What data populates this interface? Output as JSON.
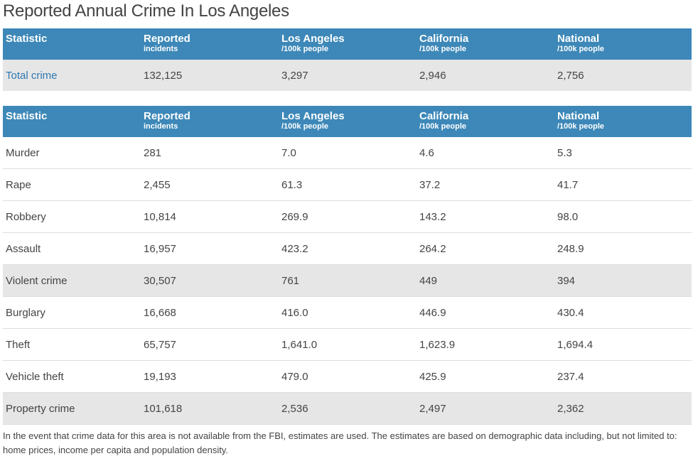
{
  "title": "Reported Annual Crime In Los Angeles",
  "header": {
    "c1": "Statistic",
    "c2": "Reported",
    "c2_sub": "incidents",
    "c3": "Los Angeles",
    "c3_sub": "/100k people",
    "c4": "California",
    "c4_sub": "/100k people",
    "c5": "National",
    "c5_sub": "/100k people"
  },
  "summary": {
    "stat": "Total crime",
    "reported": "132,125",
    "la": "3,297",
    "ca": "2,946",
    "national": "2,756"
  },
  "rows": [
    {
      "stat": "Murder",
      "reported": "281",
      "la": "7.0",
      "ca": "4.6",
      "national": "5.3"
    },
    {
      "stat": "Rape",
      "reported": "2,455",
      "la": "61.3",
      "ca": "37.2",
      "national": "41.7"
    },
    {
      "stat": "Robbery",
      "reported": "10,814",
      "la": "269.9",
      "ca": "143.2",
      "national": "98.0"
    },
    {
      "stat": "Assault",
      "reported": "16,957",
      "la": "423.2",
      "ca": "264.2",
      "national": "248.9"
    },
    {
      "stat": "Violent crime",
      "reported": "30,507",
      "la": "761",
      "ca": "449",
      "national": "394"
    },
    {
      "stat": "Burglary",
      "reported": "16,668",
      "la": "416.0",
      "ca": "446.9",
      "national": "430.4"
    },
    {
      "stat": "Theft",
      "reported": "65,757",
      "la": "1,641.0",
      "ca": "1,623.9",
      "national": "1,694.4"
    },
    {
      "stat": "Vehicle theft",
      "reported": "19,193",
      "la": "479.0",
      "ca": "425.9",
      "national": "237.4"
    },
    {
      "stat": "Property crime",
      "reported": "101,618",
      "la": "2,536",
      "ca": "2,497",
      "national": "2,362"
    }
  ],
  "footnote": "In the event that crime data for this area is not available from the FBI, estimates are used. The estimates are based on demographic data including, but not limited to: home prices, income per capita and population density.",
  "colors": {
    "header_bg": "#3d88b8",
    "shade_bg": "#e6e6e6",
    "link": "#2e78b0"
  }
}
